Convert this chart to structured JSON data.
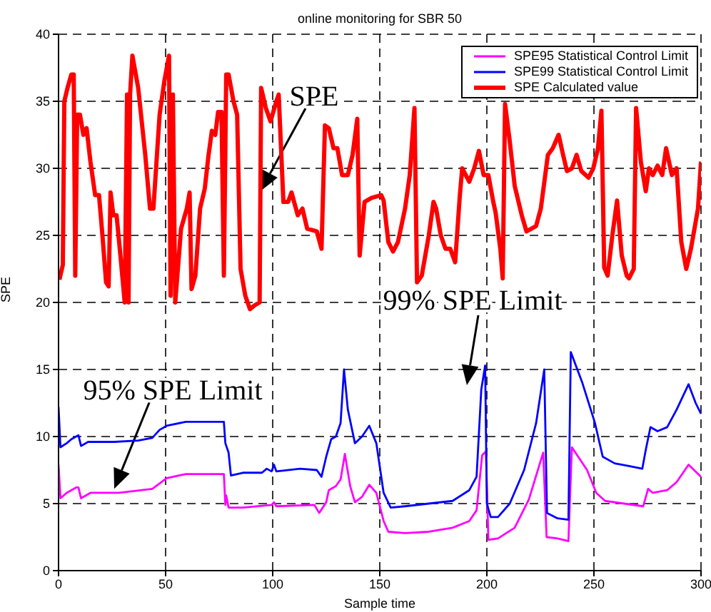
{
  "chart_data": {
    "type": "line",
    "title": "online monitoring for SBR 50",
    "xlabel": "Sample time",
    "ylabel": "SPE",
    "xlim": [
      0,
      300
    ],
    "xticks": [
      0,
      50,
      100,
      150,
      200,
      250,
      300
    ],
    "ylim": [
      0,
      40
    ],
    "yticks": [
      0,
      5,
      10,
      15,
      20,
      25,
      30,
      35,
      40
    ],
    "grid": true,
    "legend": "top right",
    "marker": "none",
    "line_style": "solid",
    "annotations": [
      {
        "text": "SPE",
        "x": 94.3,
        "y": 28.3
      },
      "99% SPE Limit",
      {
        "text": "95% SPE Limit",
        "x": 26,
        "y": 6.1
      }
    ],
    "series": [
      {
        "name": "SPE95 Statistical Control Limit",
        "color": "#ff00ff",
        "x": [
          0,
          0.9,
          3.8,
          8.2,
          9.3,
          10.5,
          14.9,
          28.3,
          43.8,
          50.5,
          59.4,
          77.2,
          77.9,
          78.3,
          79.4,
          80.5,
          86.1,
          99.5,
          100.6,
          101.7,
          119.5,
          121.7,
          125,
          126.2,
          129.5,
          131.7,
          133.7,
          136.2,
          138.4,
          141.7,
          145.1,
          148.4,
          151.8,
          154,
          161.8,
          172.9,
          184,
          191.8,
          195.2,
          197.8,
          199.6,
          200.7,
          205.2,
          213,
          219.6,
          226.3,
          227.9,
          233,
          238.1,
          239.7,
          246.8,
          251.1,
          255.2,
          264.1,
          273,
          275.3,
          277.5,
          284.2,
          288.6,
          294.2,
          300
        ],
        "values": [
          7.9,
          5.4,
          5.8,
          6.2,
          6.2,
          5.4,
          5.8,
          5.8,
          6.1,
          6.9,
          7.2,
          7.2,
          4.9,
          5.6,
          4.7,
          4.7,
          4.7,
          4.9,
          5.1,
          4.8,
          4.9,
          4.3,
          5.1,
          6,
          6.3,
          6.8,
          8.7,
          6.3,
          5.1,
          5.5,
          6.4,
          5.8,
          3.7,
          2.9,
          2.8,
          2.9,
          3.2,
          3.7,
          4.5,
          8.6,
          8.9,
          2.3,
          2.4,
          3.2,
          5.3,
          8.8,
          2.5,
          2.4,
          2.2,
          9.2,
          7.5,
          5.8,
          5.2,
          5,
          4.8,
          6.1,
          5.8,
          6,
          6.6,
          7.9,
          7
        ]
      },
      {
        "name": "SPE99 Statistical Control Limit",
        "color": "#0000ff",
        "x": [
          0,
          0.9,
          3.8,
          6,
          8.2,
          9.3,
          10.5,
          13.8,
          26,
          37.2,
          43.8,
          47.2,
          50.5,
          59.4,
          77.2,
          77.9,
          79.4,
          80.5,
          86.1,
          95,
          97.2,
          99.5,
          100.6,
          101.7,
          112.8,
          120.6,
          122.8,
          125,
          127.3,
          129.5,
          131.7,
          133.3,
          135.1,
          138.4,
          141.7,
          145.1,
          148.4,
          151.8,
          155.1,
          161.8,
          172.9,
          184,
          191.8,
          195.2,
          197.4,
          199.2,
          200,
          201.8,
          205.2,
          210.7,
          217.4,
          223,
          226.8,
          228.1,
          233,
          238.1,
          239.2,
          244.6,
          250.5,
          254.1,
          259.7,
          266.4,
          272.6,
          274.2,
          276.4,
          279.7,
          284.2,
          288.6,
          294.2,
          297.5,
          300
        ],
        "values": [
          12.2,
          9.2,
          9.5,
          9.8,
          10,
          10.1,
          9.3,
          9.6,
          9.6,
          9.7,
          9.9,
          10.5,
          10.8,
          11.1,
          11.1,
          9.5,
          8.8,
          7.1,
          7.3,
          7.3,
          7.6,
          7.4,
          7.9,
          7.4,
          7.6,
          7.5,
          7,
          8.5,
          9.8,
          10,
          11,
          15,
          12,
          9.5,
          10,
          10.8,
          9.5,
          5.8,
          4.7,
          4.8,
          5,
          5.2,
          6,
          7,
          13.5,
          15.3,
          5,
          4,
          4,
          5,
          7.5,
          11,
          15,
          4.3,
          3.9,
          3.8,
          16.3,
          14,
          11,
          8.5,
          8,
          7.8,
          7.6,
          9,
          10.7,
          10.4,
          10.7,
          12,
          13.9,
          12.5,
          11.7
        ]
      },
      {
        "name": "SPE Calculated value",
        "color": "#ff0000",
        "x": [
          0.4,
          2,
          2.7,
          4.2,
          6,
          7.1,
          7.8,
          8.7,
          10,
          11.6,
          13.1,
          14.9,
          17.1,
          18.9,
          20.5,
          22.2,
          23.4,
          24.3,
          25.6,
          27.1,
          28.9,
          30.9,
          32,
          32.7,
          33.4,
          34.5,
          37.2,
          40.5,
          42.7,
          44.3,
          47.2,
          49.4,
          51.6,
          52.3,
          53.4,
          54.5,
          57.2,
          59.9,
          61.2,
          62.1,
          63.9,
          66.1,
          68.3,
          69.9,
          71.6,
          73.2,
          74.5,
          76.1,
          77.2,
          78.3,
          79.4,
          81.7,
          83.4,
          85,
          87.2,
          89.4,
          91.7,
          93.9,
          94.6,
          96.8,
          99,
          101.7,
          102.8,
          105,
          107.2,
          108.8,
          111.7,
          113.9,
          116.1,
          120.6,
          122.8,
          124.4,
          126.2,
          128.4,
          130.2,
          132.4,
          135.1,
          137.3,
          139.5,
          140.6,
          142.9,
          146.2,
          150.7,
          151.8,
          154,
          156.2,
          158.5,
          161.8,
          164,
          166.2,
          167.4,
          169.6,
          172.9,
          175.1,
          176.3,
          178.5,
          180.7,
          182.9,
          185.2,
          187.4,
          188.5,
          191.8,
          194.1,
          196.3,
          198.5,
          200.7,
          203,
          204.1,
          206.3,
          207.4,
          208.5,
          210.7,
          213,
          216.3,
          218.5,
          220.8,
          223,
          225.2,
          228.5,
          230.8,
          233.5,
          235.6,
          237.4,
          239.7,
          241.9,
          244.1,
          247.5,
          249.7,
          251.9,
          253.5,
          254.8,
          256.4,
          258.6,
          260.8,
          263,
          265.3,
          266.4,
          268.6,
          269.7,
          271.9,
          274.2,
          275.7,
          277.5,
          279.7,
          281.9,
          283.7,
          286.4,
          288.6,
          290.8,
          293.1,
          295.3,
          298.6,
          300
        ],
        "values": [
          21.7,
          22.8,
          35,
          36,
          37,
          37,
          22,
          34,
          34,
          32.5,
          33,
          30.5,
          28,
          28,
          25,
          21.5,
          21.2,
          28.2,
          26.5,
          26.5,
          23.5,
          20,
          35.5,
          20,
          35.5,
          38.4,
          36,
          31,
          27,
          27,
          34,
          36.5,
          38.4,
          20.5,
          35.5,
          20,
          25.5,
          27,
          28.2,
          21,
          22,
          27,
          28.5,
          30.8,
          32.8,
          32.5,
          34.2,
          34.2,
          22,
          37,
          37,
          35,
          34,
          22.5,
          20.5,
          19.5,
          19.8,
          20,
          36,
          34.5,
          33.5,
          35,
          35.5,
          27.5,
          27.5,
          28.2,
          26.5,
          27,
          25.5,
          25.3,
          24,
          33.2,
          33,
          31.5,
          31.5,
          29.5,
          29.5,
          31,
          33.7,
          23.5,
          27.5,
          27.8,
          28,
          27.6,
          24.5,
          23.8,
          24.5,
          27,
          29.5,
          34.5,
          21.5,
          22,
          25,
          27.5,
          27,
          25,
          24,
          24,
          23,
          28,
          30,
          29,
          30,
          31.3,
          29.5,
          29.5,
          27.5,
          26.7,
          24,
          21.8,
          34.8,
          32,
          28.7,
          26.5,
          25.3,
          25.5,
          25.7,
          27,
          31,
          31.5,
          32.5,
          31,
          29.8,
          30,
          31,
          29.8,
          29.3,
          30,
          31.5,
          34.3,
          22.6,
          22,
          25,
          27.6,
          23.5,
          22,
          21.8,
          22.5,
          34.5,
          30.5,
          28.3,
          30,
          29.5,
          30.2,
          29.5,
          31.5,
          29.5,
          30,
          24.5,
          22.5,
          24,
          27,
          30.5
        ]
      }
    ]
  }
}
